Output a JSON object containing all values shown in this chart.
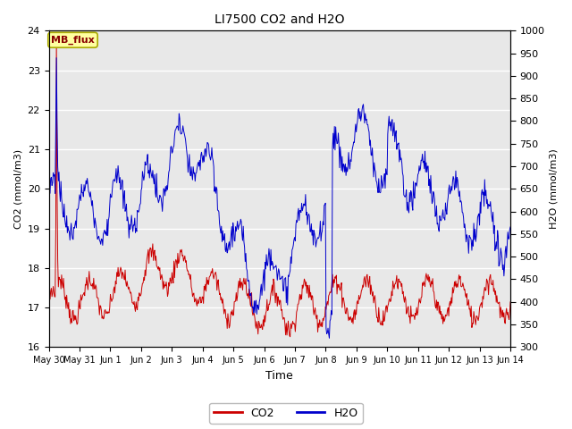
{
  "title": "LI7500 CO2 and H2O",
  "xlabel": "Time",
  "ylabel_left": "CO2 (mmol/m3)",
  "ylabel_right": "H2O (mmol/m3)",
  "co2_color": "#CC0000",
  "h2o_color": "#0000CC",
  "ylim_left": [
    16.0,
    24.0
  ],
  "ylim_right": [
    300,
    1000
  ],
  "yticks_left": [
    16.0,
    17.0,
    18.0,
    19.0,
    20.0,
    21.0,
    22.0,
    23.0,
    24.0
  ],
  "yticks_right": [
    300,
    350,
    400,
    450,
    500,
    550,
    600,
    650,
    700,
    750,
    800,
    850,
    900,
    950,
    1000
  ],
  "background_color": "#E8E8E8",
  "annotation_text": "MB_flux",
  "annotation_facecolor": "#FFFFA0",
  "annotation_edgecolor": "#AAAA00",
  "annotation_textcolor": "#880000",
  "xlim": [
    0,
    15
  ],
  "tick_labels_x": [
    "May 30",
    "May 31",
    "Jun 1",
    "Jun 2",
    "Jun 3",
    "Jun 4",
    "Jun 5",
    "Jun 6",
    "Jun 7",
    "Jun 8",
    "Jun 9",
    "Jun 10",
    "Jun 11",
    "Jun 12",
    "Jun 13",
    "Jun 14"
  ],
  "figsize": [
    6.4,
    4.8
  ],
  "dpi": 100
}
